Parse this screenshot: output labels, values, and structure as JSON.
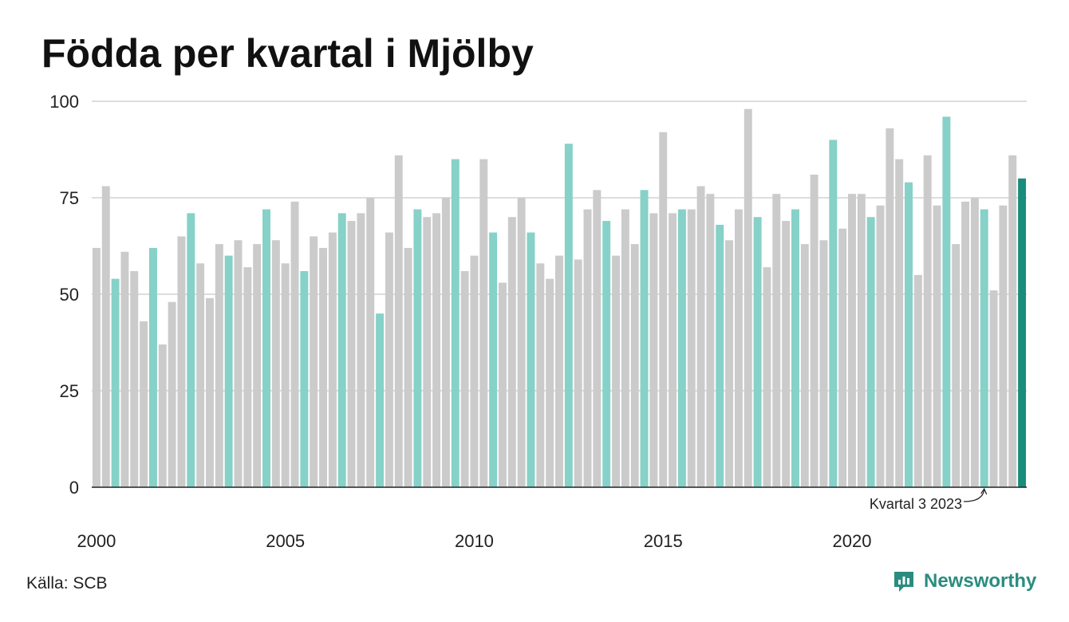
{
  "title": "Födda per kvartal i Mjölby",
  "source": "Källa: SCB",
  "brand": "Newsworthy",
  "colors": {
    "bar": "#cbcbcb",
    "bar_q3": "#86d1c8",
    "bar_latest": "#1a8c7c",
    "grid": "#dddddd",
    "axis": "#222222",
    "brand": "#2a8c7f"
  },
  "chart_data": {
    "type": "bar",
    "title": "Födda per kvartal i Mjölby",
    "xlabel": "",
    "ylabel": "",
    "ylim": [
      0,
      100
    ],
    "yticks": [
      0,
      25,
      50,
      75,
      100
    ],
    "xtick_labels": [
      "2000",
      "2005",
      "2010",
      "2015",
      "2020"
    ],
    "grid": true,
    "annotation": "Kvartal 3 2023",
    "highlight": "Q3 each year; latest bar dark",
    "values": [
      62,
      78,
      54,
      61,
      56,
      43,
      62,
      37,
      48,
      65,
      71,
      58,
      49,
      63,
      60,
      64,
      57,
      63,
      72,
      64,
      58,
      74,
      56,
      65,
      62,
      66,
      71,
      69,
      71,
      75,
      45,
      66,
      86,
      62,
      72,
      70,
      71,
      75,
      85,
      56,
      60,
      85,
      66,
      53,
      70,
      75,
      66,
      58,
      54,
      60,
      89,
      59,
      72,
      77,
      69,
      60,
      72,
      63,
      77,
      71,
      92,
      71,
      72,
      72,
      78,
      76,
      68,
      64,
      72,
      98,
      70,
      57,
      76,
      69,
      72,
      63,
      81,
      64,
      90,
      67,
      76,
      76,
      70,
      73,
      93,
      85,
      79,
      55,
      86,
      73,
      96,
      63,
      74,
      75,
      72,
      51,
      73,
      86,
      80
    ]
  }
}
